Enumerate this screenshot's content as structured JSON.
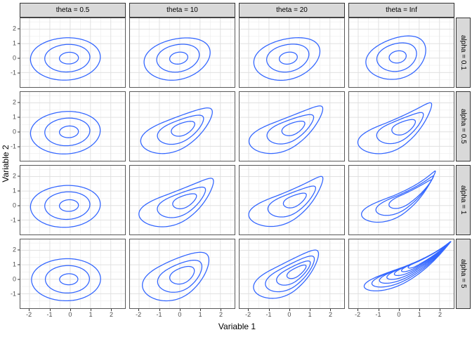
{
  "chart_data": {
    "type": "contour",
    "title": "",
    "xlabel": "Variable 1",
    "ylabel": "Variable 2",
    "facet_grid": {
      "cols_var": "theta",
      "rows_var": "alpha"
    },
    "col_labels": [
      "theta = 0.5",
      "theta = 10",
      "theta = 20",
      "theta = Inf"
    ],
    "row_labels": [
      "alpha = 0.1",
      "alpha = 0.5",
      "alpha = 1",
      "alpha = 5"
    ],
    "xlim": [
      -2.45,
      2.7
    ],
    "ylim": [
      -2.0,
      2.75
    ],
    "x_ticks": [
      -2,
      -1,
      0,
      1,
      2
    ],
    "y_ticks": [
      -1,
      0,
      1,
      2
    ],
    "x_tick_labels": [
      "-2",
      "-1",
      "0",
      "1",
      "2"
    ],
    "y_tick_labels": [
      "-1",
      "0",
      "1",
      "2"
    ],
    "grid": {
      "major_step": 1,
      "minor_step": 0.5,
      "shown": true
    },
    "legend": "none",
    "colors": {
      "line": "#3366FF",
      "strip_bg": "#d9d9d9",
      "strip_border": "#333333",
      "panel_border": "#595959",
      "panel_bg": "#ffffff",
      "grid_major": "#e0e0e0",
      "grid_minor": "#eeeeee",
      "tick_label": "#4d4d4d",
      "axis_title": "#000000"
    },
    "contour_shape_note": "each contour: center cx,cy (data units), a1 extent toward tip, a2 extent away, b half-width, rot degrees, pinch 0-1 tip sharpness, bend spine curvature",
    "panels": [
      {
        "row": 0,
        "col": 0,
        "contours": [
          {
            "cx": -0.15,
            "cy": -0.05,
            "a1": 1.65,
            "a2": 1.8,
            "b": 1.5,
            "rot": 10,
            "pinch": 0.06,
            "bend": 0.02
          },
          {
            "cx": -0.1,
            "cy": 0,
            "a1": 1.08,
            "a2": 1.15,
            "b": 0.97,
            "rot": 10,
            "pinch": 0.05,
            "bend": 0.02
          },
          {
            "cx": -0.05,
            "cy": 0,
            "a1": 0.46,
            "a2": 0.48,
            "b": 0.4,
            "rot": 10,
            "pinch": 0,
            "bend": 0
          }
        ]
      },
      {
        "row": 0,
        "col": 1,
        "contours": [
          {
            "cx": -0.1,
            "cy": -0.05,
            "a1": 1.75,
            "a2": 1.7,
            "b": 1.45,
            "rot": 32,
            "pinch": 0.15,
            "bend": 0.02
          },
          {
            "cx": -0.08,
            "cy": 0,
            "a1": 1.12,
            "a2": 1.08,
            "b": 0.95,
            "rot": 32,
            "pinch": 0.1,
            "bend": 0.02
          },
          {
            "cx": -0.05,
            "cy": 0,
            "a1": 0.47,
            "a2": 0.46,
            "b": 0.4,
            "rot": 32,
            "pinch": 0.04,
            "bend": 0
          }
        ]
      },
      {
        "row": 0,
        "col": 2,
        "contours": [
          {
            "cx": -0.1,
            "cy": -0.05,
            "a1": 1.8,
            "a2": 1.7,
            "b": 1.45,
            "rot": 34,
            "pinch": 0.18,
            "bend": 0.02
          },
          {
            "cx": -0.08,
            "cy": 0,
            "a1": 1.14,
            "a2": 1.06,
            "b": 0.95,
            "rot": 34,
            "pinch": 0.12,
            "bend": 0.02
          },
          {
            "cx": -0.05,
            "cy": 0,
            "a1": 0.47,
            "a2": 0.46,
            "b": 0.4,
            "rot": 34,
            "pinch": 0.05,
            "bend": 0
          }
        ]
      },
      {
        "row": 0,
        "col": 3,
        "contours": [
          {
            "cx": -0.1,
            "cy": 0,
            "a1": 1.75,
            "a2": 1.6,
            "b": 1.42,
            "rot": 46,
            "pinch": 0.22,
            "bend": 0.03
          },
          {
            "cx": -0.1,
            "cy": 0.05,
            "a1": 1.12,
            "a2": 1.02,
            "b": 0.95,
            "rot": 46,
            "pinch": 0.14,
            "bend": 0.02
          },
          {
            "cx": -0.06,
            "cy": 0.08,
            "a1": 0.46,
            "a2": 0.44,
            "b": 0.4,
            "rot": 46,
            "pinch": 0.05,
            "bend": 0
          }
        ]
      },
      {
        "row": 1,
        "col": 0,
        "contours": [
          {
            "cx": -0.15,
            "cy": -0.05,
            "a1": 1.65,
            "a2": 1.8,
            "b": 1.5,
            "rot": 12,
            "pinch": 0.06,
            "bend": 0.02
          },
          {
            "cx": -0.1,
            "cy": 0,
            "a1": 1.08,
            "a2": 1.15,
            "b": 0.97,
            "rot": 12,
            "pinch": 0.05,
            "bend": 0.02
          },
          {
            "cx": -0.05,
            "cy": 0,
            "a1": 0.46,
            "a2": 0.48,
            "b": 0.4,
            "rot": 12,
            "pinch": 0,
            "bend": 0
          }
        ]
      },
      {
        "row": 1,
        "col": 1,
        "contours": [
          {
            "cx": -0.1,
            "cy": -0.05,
            "a1": 2.3,
            "a2": 1.95,
            "b": 1.3,
            "rot": 38,
            "pinch": 0.5,
            "bend": 0.05
          },
          {
            "cx": 0.05,
            "cy": 0.1,
            "a1": 1.45,
            "a2": 1.25,
            "b": 0.85,
            "rot": 38,
            "pinch": 0.42,
            "bend": 0.05
          },
          {
            "cx": 0.15,
            "cy": 0.2,
            "a1": 0.72,
            "a2": 0.62,
            "b": 0.45,
            "rot": 38,
            "pinch": 0.3,
            "bend": 0.04
          }
        ]
      },
      {
        "row": 1,
        "col": 2,
        "contours": [
          {
            "cx": -0.1,
            "cy": -0.05,
            "a1": 2.45,
            "a2": 2.0,
            "b": 1.3,
            "rot": 38,
            "pinch": 0.58,
            "bend": 0.06
          },
          {
            "cx": 0.05,
            "cy": 0.12,
            "a1": 1.5,
            "a2": 1.25,
            "b": 0.85,
            "rot": 38,
            "pinch": 0.48,
            "bend": 0.05
          },
          {
            "cx": 0.18,
            "cy": 0.22,
            "a1": 0.72,
            "a2": 0.6,
            "b": 0.43,
            "rot": 38,
            "pinch": 0.32,
            "bend": 0.04
          }
        ]
      },
      {
        "row": 1,
        "col": 3,
        "contours": [
          {
            "cx": -0.1,
            "cy": -0.05,
            "a1": 2.6,
            "a2": 2.05,
            "b": 1.28,
            "rot": 40,
            "pinch": 0.68,
            "bend": 0.07
          },
          {
            "cx": 0.05,
            "cy": 0.15,
            "a1": 1.6,
            "a2": 1.25,
            "b": 0.85,
            "rot": 40,
            "pinch": 0.55,
            "bend": 0.06
          },
          {
            "cx": 0.2,
            "cy": 0.28,
            "a1": 0.78,
            "a2": 0.6,
            "b": 0.45,
            "rot": 40,
            "pinch": 0.35,
            "bend": 0.04
          }
        ]
      },
      {
        "row": 2,
        "col": 0,
        "contours": [
          {
            "cx": -0.15,
            "cy": -0.05,
            "a1": 1.65,
            "a2": 1.8,
            "b": 1.48,
            "rot": 10,
            "pinch": 0.06,
            "bend": 0.02
          },
          {
            "cx": -0.1,
            "cy": 0,
            "a1": 1.08,
            "a2": 1.15,
            "b": 0.97,
            "rot": 10,
            "pinch": 0.05,
            "bend": 0.02
          },
          {
            "cx": -0.05,
            "cy": 0,
            "a1": 0.46,
            "a2": 0.48,
            "b": 0.4,
            "rot": 10,
            "pinch": 0,
            "bend": 0
          }
        ]
      },
      {
        "row": 2,
        "col": 1,
        "contours": [
          {
            "cx": -0.05,
            "cy": 0,
            "a1": 2.45,
            "a2": 2.05,
            "b": 1.35,
            "rot": 38,
            "pinch": 0.6,
            "bend": 0.07
          },
          {
            "cx": 0.1,
            "cy": 0.15,
            "a1": 1.55,
            "a2": 1.3,
            "b": 0.88,
            "rot": 38,
            "pinch": 0.5,
            "bend": 0.06
          },
          {
            "cx": 0.22,
            "cy": 0.28,
            "a1": 0.75,
            "a2": 0.62,
            "b": 0.45,
            "rot": 38,
            "pinch": 0.35,
            "bend": 0.04
          }
        ]
      },
      {
        "row": 2,
        "col": 2,
        "contours": [
          {
            "cx": -0.05,
            "cy": 0,
            "a1": 2.55,
            "a2": 2.05,
            "b": 1.3,
            "rot": 39,
            "pinch": 0.66,
            "bend": 0.075
          },
          {
            "cx": 0.12,
            "cy": 0.18,
            "a1": 1.6,
            "a2": 1.28,
            "b": 0.85,
            "rot": 39,
            "pinch": 0.55,
            "bend": 0.06
          },
          {
            "cx": 0.25,
            "cy": 0.32,
            "a1": 0.75,
            "a2": 0.6,
            "b": 0.42,
            "rot": 39,
            "pinch": 0.38,
            "bend": 0.05
          }
        ]
      },
      {
        "row": 2,
        "col": 3,
        "contours": [
          {
            "cx": 0.1,
            "cy": 0.2,
            "a1": 2.7,
            "a2": 2.1,
            "b": 1.05,
            "rot": 40,
            "pinch": 0.85,
            "bend": 0.08
          },
          {
            "cx": 0.25,
            "cy": 0.35,
            "a1": 2.2,
            "a2": 1.55,
            "b": 0.75,
            "rot": 40,
            "pinch": 0.8,
            "bend": 0.075
          },
          {
            "cx": 0.42,
            "cy": 0.52,
            "a1": 1.7,
            "a2": 1.05,
            "b": 0.5,
            "rot": 40,
            "pinch": 0.72,
            "bend": 0.07
          }
        ]
      },
      {
        "row": 3,
        "col": 0,
        "contours": [
          {
            "cx": -0.12,
            "cy": -0.03,
            "a1": 1.62,
            "a2": 1.78,
            "b": 1.48,
            "rot": 4,
            "pinch": 0.04,
            "bend": 0.01
          },
          {
            "cx": -0.1,
            "cy": 0,
            "a1": 1.05,
            "a2": 1.12,
            "b": 0.96,
            "rot": 4,
            "pinch": 0.03,
            "bend": 0.01
          },
          {
            "cx": -0.06,
            "cy": 0,
            "a1": 0.44,
            "a2": 0.46,
            "b": 0.38,
            "rot": 4,
            "pinch": 0,
            "bend": 0
          }
        ]
      },
      {
        "row": 3,
        "col": 1,
        "contours": [
          {
            "cx": -0.15,
            "cy": 0.1,
            "a1": 2.2,
            "a2": 1.85,
            "b": 1.45,
            "rot": 45,
            "pinch": 0.42,
            "bend": 0.03
          },
          {
            "cx": 0,
            "cy": 0.15,
            "a1": 1.45,
            "a2": 1.2,
            "b": 0.95,
            "rot": 45,
            "pinch": 0.32,
            "bend": 0.03
          },
          {
            "cx": 0.1,
            "cy": 0.25,
            "a1": 0.78,
            "a2": 0.65,
            "b": 0.53,
            "rot": 45,
            "pinch": 0.22,
            "bend": 0.02
          }
        ]
      },
      {
        "row": 3,
        "col": 2,
        "contours": [
          {
            "cx": -0.15,
            "cy": 0.1,
            "a1": 2.4,
            "a2": 1.8,
            "b": 1.2,
            "rot": 44,
            "pinch": 0.52,
            "bend": 0.05
          },
          {
            "cx": 0,
            "cy": 0.2,
            "a1": 1.8,
            "a2": 1.35,
            "b": 0.85,
            "rot": 44,
            "pinch": 0.45,
            "bend": 0.05
          },
          {
            "cx": 0.15,
            "cy": 0.32,
            "a1": 1.25,
            "a2": 0.92,
            "b": 0.55,
            "rot": 44,
            "pinch": 0.4,
            "bend": 0.04
          },
          {
            "cx": 0.3,
            "cy": 0.45,
            "a1": 0.72,
            "a2": 0.5,
            "b": 0.3,
            "rot": 44,
            "pinch": 0.3,
            "bend": 0.03
          }
        ]
      },
      {
        "row": 3,
        "col": 3,
        "contours": [
          {
            "cx": 0.53,
            "cy": 0.53,
            "a1": 2.85,
            "a2": 2.45,
            "b": 0.8,
            "rot": 36,
            "pinch": 0.93,
            "bend": 0.06
          },
          {
            "cx": 0.61,
            "cy": 0.64,
            "a1": 2.72,
            "a2": 2.15,
            "b": 0.66,
            "rot": 36,
            "pinch": 0.93,
            "bend": 0.06
          },
          {
            "cx": 0.69,
            "cy": 0.75,
            "a1": 2.59,
            "a2": 1.85,
            "b": 0.54,
            "rot": 36,
            "pinch": 0.93,
            "bend": 0.06
          },
          {
            "cx": 0.77,
            "cy": 0.86,
            "a1": 2.46,
            "a2": 1.55,
            "b": 0.43,
            "rot": 36,
            "pinch": 0.93,
            "bend": 0.06
          },
          {
            "cx": 0.86,
            "cy": 0.97,
            "a1": 2.33,
            "a2": 1.25,
            "b": 0.33,
            "rot": 36,
            "pinch": 0.93,
            "bend": 0.06
          },
          {
            "cx": 0.94,
            "cy": 1.07,
            "a1": 2.2,
            "a2": 0.95,
            "b": 0.24,
            "rot": 36,
            "pinch": 0.93,
            "bend": 0.06
          },
          {
            "cx": 1.03,
            "cy": 1.17,
            "a1": 2.07,
            "a2": 0.68,
            "b": 0.17,
            "rot": 36,
            "pinch": 0.93,
            "bend": 0.06
          }
        ]
      }
    ]
  }
}
